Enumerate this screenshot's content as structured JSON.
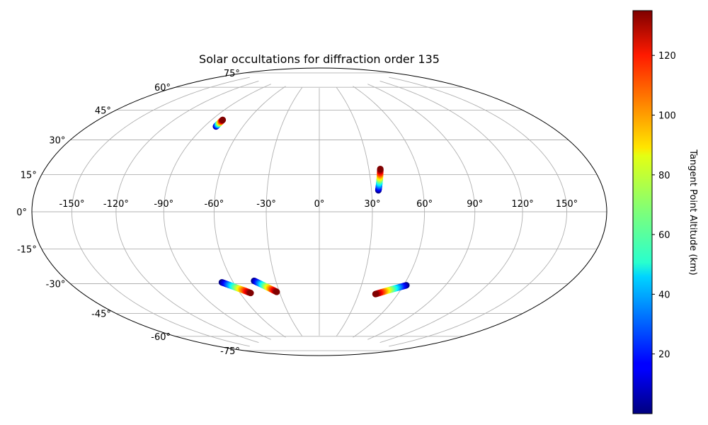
{
  "chart_data": {
    "type": "scatter",
    "projection": "hammer",
    "title": "Solar occultations for diffraction order 135",
    "grid": true,
    "lon_ticks": [
      -150,
      -120,
      -90,
      -60,
      -30,
      0,
      30,
      60,
      90,
      120,
      150
    ],
    "lat_ticks": [
      -75,
      -60,
      -45,
      -30,
      -15,
      0,
      15,
      30,
      45,
      60,
      75
    ],
    "lon_tick_labels": [
      "-150°",
      "-120°",
      "-90°",
      "-60°",
      "-30°",
      "0°",
      "30°",
      "60°",
      "90°",
      "120°",
      "150°"
    ],
    "lat_tick_labels": [
      "-75°",
      "-60°",
      "-45°",
      "-30°",
      "-15°",
      "0°",
      "15°",
      "30°",
      "45°",
      "60°",
      "75°"
    ],
    "colorbar": {
      "label": "Tangent Point Altitude (km)",
      "colormap": "jet",
      "range": [
        0,
        135
      ],
      "ticks": [
        20,
        40,
        60,
        80,
        100,
        120
      ],
      "tick_labels": [
        "20",
        "40",
        "60",
        "80",
        "100",
        "120"
      ]
    },
    "series": [
      {
        "start": {
          "lon": -81,
          "lat": 47,
          "alt": 0
        },
        "end": {
          "lon": -81,
          "lat": 51,
          "alt": 135
        }
      },
      {
        "start": {
          "lon": 34,
          "lat": 12,
          "alt": 0
        },
        "end": {
          "lon": 37,
          "lat": 24,
          "alt": 135
        }
      },
      {
        "start": {
          "lon": -68,
          "lat": -39,
          "alt": 0
        },
        "end": {
          "lon": -52,
          "lat": -46,
          "alt": 135
        }
      },
      {
        "start": {
          "lon": -45,
          "lat": -39,
          "alt": 0
        },
        "end": {
          "lon": -32,
          "lat": -46,
          "alt": 135
        }
      },
      {
        "start": {
          "lon": 62,
          "lat": -41,
          "alt": 0
        },
        "end": {
          "lon": 43,
          "lat": -47,
          "alt": 135
        }
      }
    ]
  }
}
